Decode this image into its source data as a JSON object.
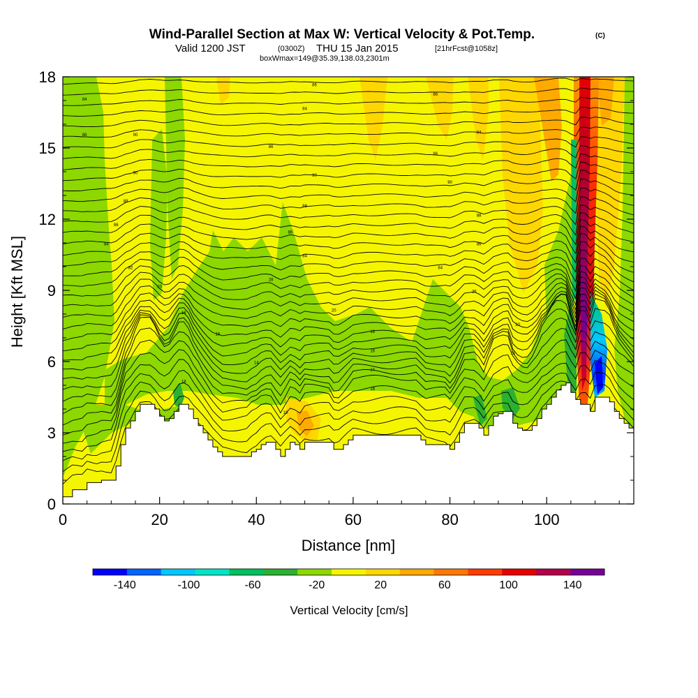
{
  "header": {
    "title": "Wind-Parallel Section at Max W: Vertical Velocity & Pot.Temp.",
    "copyright": "(C)",
    "valid_prefix": "Valid 1200 JST",
    "valid_utc": "(0300Z)",
    "valid_date": "THU 15 Jan 2015",
    "forecast": "[21hrFcst@1058z]",
    "box": "boxWmax=149@35.39,138.03,2301m"
  },
  "chart_data": {
    "type": "heatmap",
    "xlabel": "Distance [nm]",
    "ylabel": "Height [Kft MSL]",
    "xlim": [
      0,
      118
    ],
    "ylim": [
      0,
      18
    ],
    "xticks": [
      "0",
      "20",
      "40",
      "60",
      "80",
      "100"
    ],
    "yticks": [
      "0",
      "3",
      "6",
      "9",
      "12",
      "15",
      "18"
    ],
    "grid": false,
    "colorbar": {
      "label": "Vertical Velocity [cm/s]",
      "tick_labels": [
        "-140",
        "-100",
        "-60",
        "-20",
        "20",
        "60",
        "100",
        "140"
      ],
      "tick_values": [
        -140,
        -100,
        -60,
        -20,
        20,
        60,
        100,
        140
      ],
      "range": [
        -160,
        160
      ],
      "colors": [
        "#0000ff",
        "#0064ff",
        "#00c8ff",
        "#00e6c8",
        "#00c060",
        "#2cb030",
        "#8cd800",
        "#f5f500",
        "#ffd700",
        "#ffaa00",
        "#ff7800",
        "#ff3c00",
        "#e60000",
        "#b4004a",
        "#780096"
      ]
    },
    "terrain_profile": {
      "x": [
        0,
        2,
        4,
        5,
        6,
        7,
        8,
        9,
        10,
        11,
        12,
        13,
        14,
        15,
        16,
        17,
        18,
        19,
        20,
        21,
        22,
        23,
        24,
        25,
        26,
        27,
        28,
        29,
        30,
        31,
        32,
        33,
        34,
        35,
        36,
        37,
        38,
        39,
        40,
        41,
        42,
        43,
        44,
        45,
        46,
        47,
        48,
        49,
        50,
        51,
        52,
        53,
        54,
        55,
        56,
        57,
        58,
        59,
        60,
        61,
        62,
        63,
        64,
        65,
        66,
        67,
        68,
        69,
        70,
        71,
        72,
        73,
        74,
        75,
        76,
        77,
        78,
        79,
        80,
        81,
        82,
        83,
        84,
        85,
        86,
        87,
        88,
        89,
        90,
        91,
        92,
        93,
        94,
        95,
        96,
        97,
        98,
        99,
        100,
        101,
        102,
        103,
        104,
        105,
        106,
        107,
        108,
        109,
        110,
        111,
        112,
        113,
        114,
        115,
        116,
        117,
        118
      ],
      "y": [
        0.3,
        0.6,
        0.6,
        0.9,
        0.9,
        0.9,
        1.0,
        1.0,
        1.0,
        1.6,
        2.5,
        3.2,
        3.5,
        3.9,
        4.2,
        4.2,
        4.2,
        4.0,
        3.7,
        3.5,
        3.6,
        3.9,
        4.2,
        4.2,
        4.0,
        3.6,
        3.3,
        3.0,
        2.7,
        2.4,
        2.2,
        2.0,
        2.0,
        2.0,
        2.0,
        2.0,
        2.0,
        2.2,
        2.3,
        2.5,
        2.6,
        2.6,
        2.3,
        2.0,
        2.3,
        2.6,
        2.5,
        2.3,
        2.6,
        2.6,
        2.6,
        2.6,
        2.6,
        2.6,
        2.3,
        2.3,
        2.5,
        2.7,
        2.9,
        2.9,
        2.9,
        2.9,
        2.9,
        2.9,
        2.9,
        2.9,
        2.9,
        2.9,
        2.9,
        2.9,
        2.9,
        2.9,
        2.7,
        2.5,
        2.5,
        2.5,
        2.5,
        2.5,
        2.3,
        2.6,
        3.0,
        3.4,
        3.4,
        3.4,
        3.2,
        2.9,
        3.3,
        3.7,
        3.8,
        3.9,
        3.9,
        3.4,
        3.2,
        3.1,
        3.1,
        3.3,
        3.6,
        4.0,
        4.2,
        4.5,
        4.8,
        5.0,
        5.1,
        4.7,
        4.4,
        4.2,
        4.2,
        3.9,
        4.5,
        4.5,
        4.5,
        4.3,
        3.9,
        3.6,
        3.4,
        3.2,
        3.0
      ]
    },
    "contour_labels": [
      {
        "text": "84",
        "x": 4.5,
        "y": 17.0
      },
      {
        "text": "86",
        "x": 4.5,
        "y": 15.5
      },
      {
        "text": "90",
        "x": 15.0,
        "y": 15.5
      },
      {
        "text": "86",
        "x": 52.0,
        "y": 17.6
      },
      {
        "text": "86",
        "x": 77.0,
        "y": 17.2
      },
      {
        "text": "84",
        "x": 50.0,
        "y": 16.6
      },
      {
        "text": "84",
        "x": 86.0,
        "y": 15.6
      },
      {
        "text": "86",
        "x": 43.0,
        "y": 15.0
      },
      {
        "text": "86",
        "x": 77.0,
        "y": 14.7
      },
      {
        "text": "90",
        "x": 15.0,
        "y": 13.9
      },
      {
        "text": "90",
        "x": 52.0,
        "y": 13.8
      },
      {
        "text": "90",
        "x": 80.0,
        "y": 13.5
      },
      {
        "text": "88",
        "x": 13.0,
        "y": 12.7
      },
      {
        "text": "88",
        "x": 50.0,
        "y": 12.5
      },
      {
        "text": "88",
        "x": 86.0,
        "y": 12.1
      },
      {
        "text": "86",
        "x": 11.0,
        "y": 11.7
      },
      {
        "text": "86",
        "x": 47.0,
        "y": 11.4
      },
      {
        "text": "84",
        "x": 9.0,
        "y": 10.9
      },
      {
        "text": "86",
        "x": 86.0,
        "y": 10.9
      },
      {
        "text": "84",
        "x": 50.0,
        "y": 10.4
      },
      {
        "text": "84",
        "x": 78.0,
        "y": 9.9
      },
      {
        "text": "82",
        "x": 14.0,
        "y": 9.9
      },
      {
        "text": "28",
        "x": 43.0,
        "y": 9.4
      },
      {
        "text": "20",
        "x": 20.0,
        "y": 9.1
      },
      {
        "text": "26",
        "x": 85.0,
        "y": 8.9
      },
      {
        "text": "18",
        "x": 25.0,
        "y": 8.0
      },
      {
        "text": "20",
        "x": 56.0,
        "y": 8.1
      },
      {
        "text": "20",
        "x": 94.0,
        "y": 7.5
      },
      {
        "text": "16",
        "x": 32.0,
        "y": 7.1
      },
      {
        "text": "16",
        "x": 64.0,
        "y": 7.2
      },
      {
        "text": "16",
        "x": 64.0,
        "y": 6.4
      },
      {
        "text": "16",
        "x": 93.0,
        "y": 6.3
      },
      {
        "text": "14",
        "x": 40.0,
        "y": 5.9
      },
      {
        "text": "14",
        "x": 64.0,
        "y": 5.6
      },
      {
        "text": "18",
        "x": 25.0,
        "y": 5.1
      },
      {
        "text": "18",
        "x": 64.0,
        "y": 4.8
      },
      {
        "text": "10",
        "x": 46.0,
        "y": 3.8
      }
    ]
  }
}
